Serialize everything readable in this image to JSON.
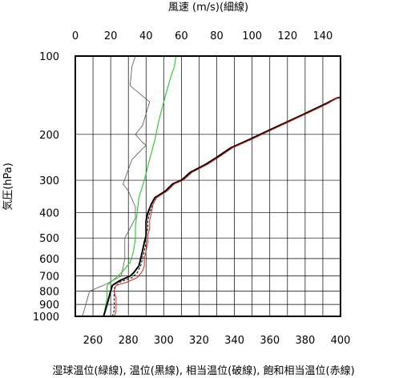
{
  "chart_data": {
    "type": "line",
    "title_top": "風速 (m/s)(細線)",
    "ylabel": "気圧(hPa)",
    "caption": "湿球温位(緑線), 温位(黒線), 相当温位(破線), 飽和相当温位(赤線)",
    "x_bottom": {
      "range": [
        250,
        400
      ],
      "ticks": [
        260,
        280,
        300,
        320,
        340,
        360,
        380,
        400
      ],
      "gridlines": [
        250,
        260,
        270,
        280,
        290,
        300,
        310,
        320,
        330,
        340,
        350,
        360,
        370,
        380,
        390,
        400
      ]
    },
    "x_top": {
      "range": [
        0,
        150
      ],
      "ticks": [
        0,
        20,
        40,
        60,
        80,
        100,
        120,
        140
      ]
    },
    "y_axis": {
      "scale": "log",
      "range": [
        1000,
        100
      ],
      "ticks": [
        100,
        200,
        300,
        400,
        500,
        600,
        700,
        800,
        900,
        1000
      ]
    },
    "grid": true,
    "series": [
      {
        "key": "wind_speed",
        "axis": "top",
        "color": "#555555",
        "points": [
          [
            4,
            1000
          ],
          [
            6,
            900
          ],
          [
            8,
            800
          ],
          [
            16,
            760
          ],
          [
            26,
            700
          ],
          [
            28,
            600
          ],
          [
            28,
            500
          ],
          [
            34,
            420
          ],
          [
            34,
            400
          ],
          [
            34,
            380
          ],
          [
            30,
            330
          ],
          [
            27,
            310
          ],
          [
            32,
            250
          ],
          [
            40,
            220
          ],
          [
            38,
            215
          ],
          [
            34,
            200
          ],
          [
            38,
            185
          ],
          [
            42,
            150
          ],
          [
            31,
            130
          ],
          [
            32,
            110
          ],
          [
            34,
            100
          ]
        ]
      },
      {
        "key": "wet_bulb_potential_temperature",
        "axis": "bottom",
        "color": "#22cc22",
        "points": [
          [
            266,
            1000
          ],
          [
            267,
            920
          ],
          [
            268,
            850
          ],
          [
            268,
            800
          ],
          [
            268,
            760
          ],
          [
            271,
            730
          ],
          [
            274,
            700
          ],
          [
            277,
            670
          ],
          [
            281,
            620
          ],
          [
            283,
            560
          ],
          [
            284,
            500
          ],
          [
            284,
            450
          ],
          [
            285,
            400
          ],
          [
            286,
            350
          ],
          [
            289,
            300
          ],
          [
            292,
            250
          ],
          [
            295,
            210
          ],
          [
            297,
            180
          ],
          [
            300,
            150
          ],
          [
            304,
            120
          ],
          [
            306,
            110
          ],
          [
            307,
            100
          ]
        ]
      },
      {
        "key": "potential_temperature",
        "axis": "bottom",
        "color": "#000000",
        "points": [
          [
            266,
            1000
          ],
          [
            268,
            900
          ],
          [
            270,
            800
          ],
          [
            271,
            760
          ],
          [
            275,
            730
          ],
          [
            281,
            700
          ],
          [
            283,
            680
          ],
          [
            286,
            640
          ],
          [
            287,
            600
          ],
          [
            288,
            560
          ],
          [
            289,
            520
          ],
          [
            290,
            490
          ],
          [
            290,
            460
          ],
          [
            290,
            430
          ],
          [
            291,
            400
          ],
          [
            293,
            370
          ],
          [
            295,
            350
          ],
          [
            301,
            330
          ],
          [
            305,
            310
          ],
          [
            310,
            300
          ],
          [
            315,
            280
          ],
          [
            324,
            260
          ],
          [
            330,
            245
          ],
          [
            338,
            225
          ],
          [
            348,
            210
          ],
          [
            358,
            195
          ],
          [
            369,
            180
          ],
          [
            381,
            165
          ],
          [
            392,
            152
          ],
          [
            398,
            145
          ],
          [
            400,
            144
          ]
        ]
      },
      {
        "key": "equivalent_potential_temperature",
        "axis": "bottom",
        "color": "#000000",
        "dashed": true,
        "points": [
          [
            271,
            1000
          ],
          [
            272,
            950
          ],
          [
            272,
            900
          ],
          [
            272,
            850
          ],
          [
            272,
            800
          ],
          [
            272,
            780
          ],
          [
            275,
            740
          ],
          [
            282,
            710
          ],
          [
            285,
            680
          ],
          [
            287,
            640
          ],
          [
            288,
            600
          ],
          [
            289,
            560
          ],
          [
            290,
            520
          ],
          [
            290,
            490
          ],
          [
            291,
            460
          ],
          [
            291,
            430
          ],
          [
            292,
            400
          ],
          [
            294,
            370
          ],
          [
            296,
            350
          ],
          [
            302,
            330
          ],
          [
            306,
            310
          ],
          [
            311,
            300
          ],
          [
            316,
            280
          ],
          [
            325,
            260
          ],
          [
            331,
            245
          ],
          [
            339,
            225
          ],
          [
            349,
            210
          ],
          [
            359,
            195
          ],
          [
            370,
            180
          ],
          [
            382,
            165
          ],
          [
            393,
            152
          ],
          [
            398,
            145
          ],
          [
            400,
            144
          ]
        ]
      },
      {
        "key": "saturated_equivalent_potential_temperature",
        "axis": "bottom",
        "color": "#dd2222",
        "points": [
          [
            272,
            1000
          ],
          [
            273,
            960
          ],
          [
            273,
            900
          ],
          [
            273,
            850
          ],
          [
            272,
            800
          ],
          [
            273,
            760
          ],
          [
            279,
            740
          ],
          [
            285,
            710
          ],
          [
            288,
            670
          ],
          [
            289,
            640
          ],
          [
            289,
            600
          ],
          [
            290,
            560
          ],
          [
            291,
            520
          ],
          [
            291,
            490
          ],
          [
            292,
            460
          ],
          [
            292,
            430
          ],
          [
            293,
            400
          ],
          [
            294,
            370
          ],
          [
            296,
            350
          ],
          [
            302,
            330
          ],
          [
            306,
            310
          ],
          [
            311,
            300
          ],
          [
            316,
            280
          ],
          [
            325,
            260
          ],
          [
            331,
            245
          ],
          [
            339,
            225
          ],
          [
            349,
            210
          ],
          [
            359,
            195
          ],
          [
            370,
            180
          ],
          [
            382,
            165
          ],
          [
            393,
            152
          ],
          [
            398,
            145
          ],
          [
            400,
            144
          ]
        ]
      }
    ]
  }
}
